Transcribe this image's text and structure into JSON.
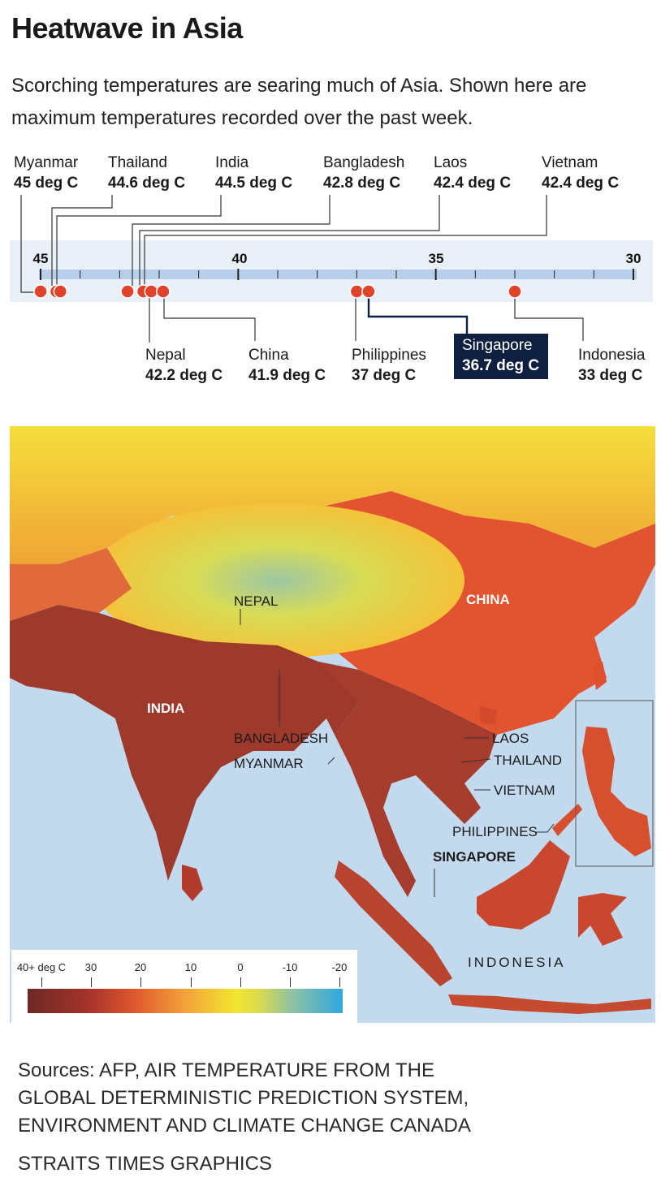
{
  "title": "Heatwave in Asia",
  "subtitle": "Scorching temperatures are searing much of Asia. Shown here are maximum temperatures recorded over the past week.",
  "temperature_scale": {
    "ticks": [
      "45",
      "40",
      "35",
      "30"
    ],
    "range": [
      45,
      30
    ],
    "top_labels": [
      {
        "country": "Myanmar",
        "value": "45 deg C",
        "temp": 45
      },
      {
        "country": "Thailand",
        "value": "44.6 deg C",
        "temp": 44.6
      },
      {
        "country": "India",
        "value": "44.5 deg C",
        "temp": 44.5
      },
      {
        "country": "Bangladesh",
        "value": "42.8 deg C",
        "temp": 42.8
      },
      {
        "country": "Laos",
        "value": "42.4 deg C",
        "temp": 42.4
      },
      {
        "country": "Vietnam",
        "value": "42.4 deg C",
        "temp": 42.4
      }
    ],
    "bottom_labels": [
      {
        "country": "Nepal",
        "value": "42.2 deg C",
        "temp": 42.2
      },
      {
        "country": "China",
        "value": "41.9 deg C",
        "temp": 41.9
      },
      {
        "country": "Philippines",
        "value": "37 deg C",
        "temp": 37
      },
      {
        "country": "Singapore",
        "value": "36.7 deg C",
        "temp": 36.7,
        "highlight": true
      },
      {
        "country": "Indonesia",
        "value": "33 deg C",
        "temp": 33
      }
    ]
  },
  "map": {
    "labels": {
      "nepal": "NEPAL",
      "china": "CHINA",
      "india": "INDIA",
      "bangladesh": "BANGLADESH",
      "myanmar": "MYANMAR",
      "laos": "LAOS",
      "thailand": "THAILAND",
      "vietnam": "VIETNAM",
      "philippines": "PHILIPPINES",
      "singapore": "SINGAPORE",
      "indonesia": "INDONESIA"
    },
    "colors": {
      "sea": "#c2d9ee",
      "hot": "#a33a2c",
      "warm": "#e2532f",
      "mild": "#f4cd38",
      "cool": "#86bfa6"
    }
  },
  "legend": {
    "ticks": [
      "40+ deg C",
      "30",
      "20",
      "10",
      "0",
      "-10",
      "-20"
    ]
  },
  "sources": [
    "Sources: AFP, AIR TEMPERATURE FROM THE",
    "GLOBAL DETERMINISTIC PREDICTION SYSTEM,",
    "ENVIRONMENT AND CLIMATE CHANGE CANADA"
  ],
  "credit": "STRAITS TIMES GRAPHICS",
  "accent_color": "#e0432b",
  "highlight_color": "#0e1f3f"
}
